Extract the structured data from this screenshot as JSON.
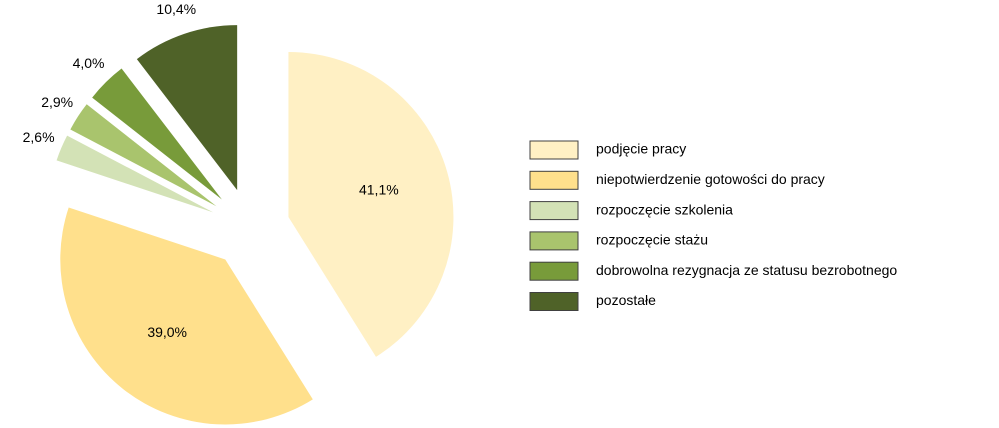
{
  "chart_data": {
    "type": "pie",
    "categories": [
      "podjęcie pracy",
      "niepotwierdzenie gotowości do pracy",
      "rozpoczęcie szkolenia",
      "rozpoczęcie stażu",
      "dobrowolna rezygnacja ze statusu bezrobotnego",
      "pozostałe"
    ],
    "values": [
      41.1,
      39.0,
      2.6,
      2.9,
      4.0,
      10.4
    ],
    "value_labels": [
      "41,1%",
      "39,0%",
      "2,6%",
      "2,9%",
      "4,0%",
      "10,4%"
    ],
    "colors": [
      "#FFF0C4",
      "#FFE08C",
      "#D3E2B6",
      "#A9C46D",
      "#789B3A",
      "#4F6228"
    ],
    "legend": "right"
  }
}
